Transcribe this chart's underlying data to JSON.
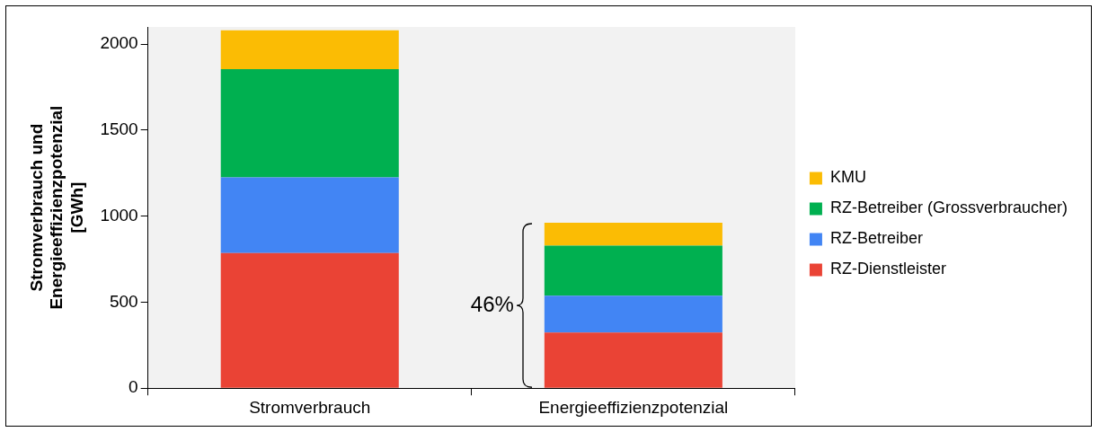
{
  "chart_data": {
    "type": "bar",
    "stacked": true,
    "ylabel": "Stromverbrauch und Energieeffizienzpotenzial [GWh]",
    "categories": [
      "Stromverbrauch",
      "Energieeffizienzpotenzial"
    ],
    "series": [
      {
        "name": "RZ-Dienstleister",
        "color": "#ea4335",
        "values": [
          785,
          323
        ]
      },
      {
        "name": "RZ-Betreiber",
        "color": "#4285f4",
        "values": [
          441,
          215
        ]
      },
      {
        "name": "RZ-Betreiber (Grossverbraucher)",
        "color": "#00b050",
        "values": [
          629,
          290
        ]
      },
      {
        "name": "KMU",
        "color": "#fbbc04",
        "values": [
          226,
          134
        ]
      }
    ],
    "ylim": [
      0,
      2100
    ],
    "yticks": [
      0,
      500,
      1000,
      1500,
      2000
    ],
    "grid": false,
    "legend": "right",
    "annotations": [
      "46%"
    ]
  }
}
